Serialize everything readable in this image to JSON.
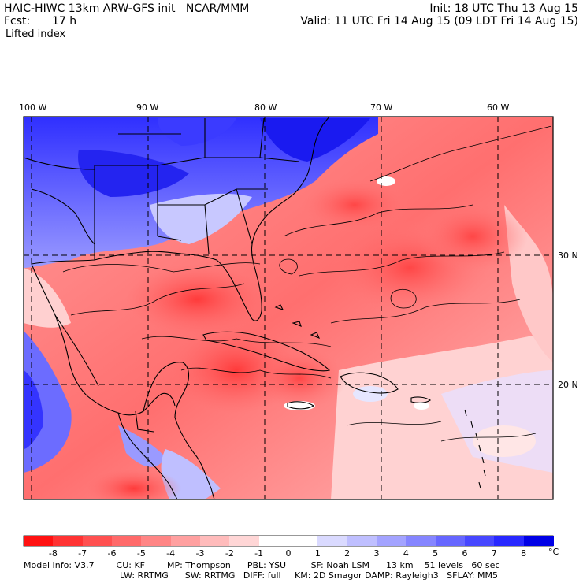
{
  "header": {
    "title": "HAIC-HIWC 13km ARW-GFS init   NCAR/MMM",
    "init": "Init: 18 UTC Thu 13 Aug 15",
    "fcst_label": "Fcst:",
    "fcst_value": "17 h",
    "valid": "Valid: 11 UTC Fri 14 Aug 15 (09 LDT Fri 14 Aug 15)",
    "field": "Lifted index"
  },
  "axes": {
    "lon_labels": [
      "100 W",
      "90 W",
      "80 W",
      "70 W",
      "60 W"
    ],
    "lat_labels": [
      "30 N",
      "20 N"
    ]
  },
  "colorbar": {
    "labels": [
      "-8",
      "-7",
      "-6",
      "-5",
      "-4",
      "-3",
      "-2",
      "-1",
      "0",
      "1",
      "2",
      "3",
      "4",
      "5",
      "6",
      "7",
      "8"
    ],
    "unit": "°C",
    "colors": [
      "#ff1111",
      "#ff3333",
      "#ff5050",
      "#ff6a6a",
      "#ff8585",
      "#ffa0a0",
      "#ffbbbb",
      "#ffd6d6",
      "#ffffff",
      "#ffffff",
      "#dadaff",
      "#bfbfff",
      "#a3a3ff",
      "#8585ff",
      "#6666ff",
      "#4747ff",
      "#2828ff",
      "#0000e6"
    ]
  },
  "footer": {
    "line1": "Model Info: V3.7        CU: KF        MP: Thompson      PBL: YSU         SF: Noah LSM      13 km    51 levels   60 sec",
    "line2": "LW: RRTMG      SW: RRTMG   DIFF: full     KM: 2D Smagor DAMP: Rayleigh3   SFLAY: MM5"
  }
}
